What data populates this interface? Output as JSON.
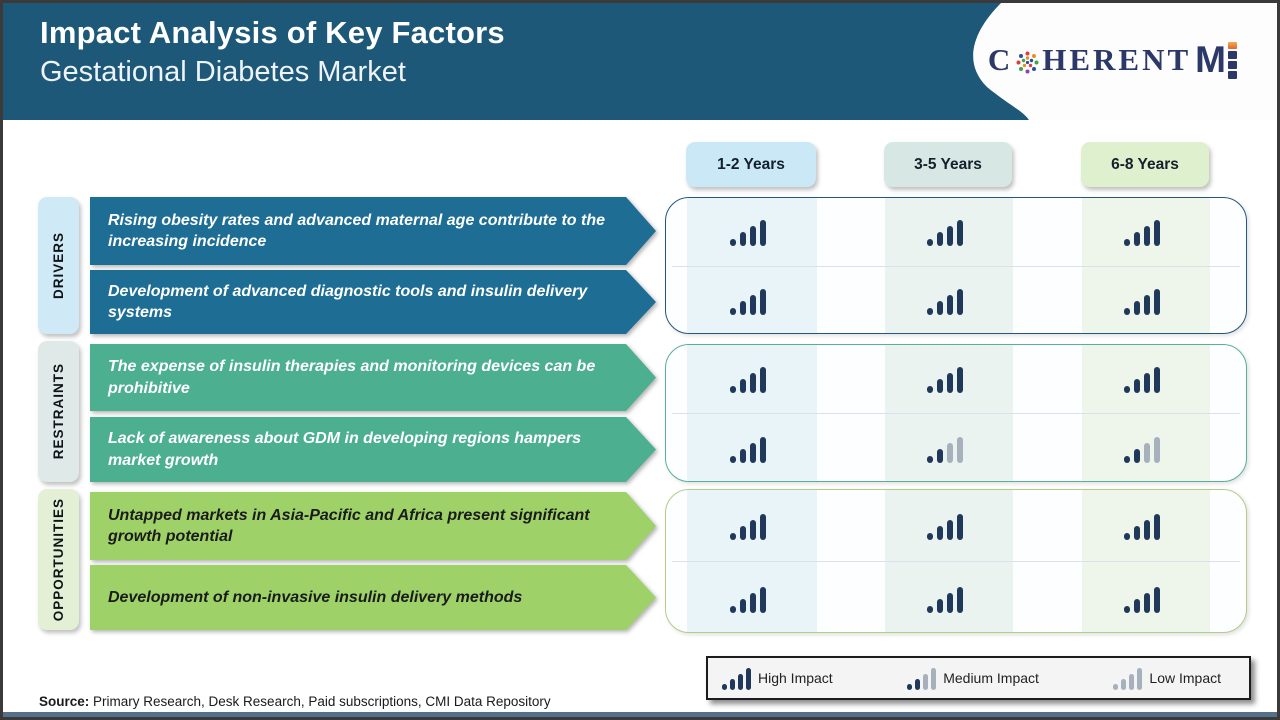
{
  "header": {
    "title": "Impact Analysis of Key Factors",
    "subtitle": "Gestational Diabetes Market",
    "brand": {
      "part1": "C",
      "part2": "HERENT",
      "part3": "M"
    }
  },
  "columns": [
    {
      "label": "1-2 Years"
    },
    {
      "label": "3-5 Years"
    },
    {
      "label": "6-8 Years"
    }
  ],
  "groups": [
    {
      "label": "DRIVERS",
      "rows": [
        {
          "text": "Rising obesity rates and advanced maternal age contribute to the increasing incidence",
          "impact": [
            "high",
            "high",
            "high"
          ]
        },
        {
          "text": "Development of advanced diagnostic tools and insulin delivery systems",
          "impact": [
            "high",
            "high",
            "high"
          ]
        }
      ]
    },
    {
      "label": "RESTRAINTS",
      "rows": [
        {
          "text": "The expense of insulin therapies and monitoring devices can be prohibitive",
          "impact": [
            "high",
            "high",
            "high"
          ]
        },
        {
          "text": "Lack of awareness about GDM in developing regions hampers market growth",
          "impact": [
            "high",
            "medium",
            "medium"
          ]
        }
      ]
    },
    {
      "label": "OPPORTUNITIES",
      "rows": [
        {
          "text": "Untapped markets in Asia-Pacific and Africa present significant growth potential",
          "impact": [
            "high",
            "high",
            "high"
          ]
        },
        {
          "text": "Development of non-invasive insulin delivery methods",
          "impact": [
            "high",
            "high",
            "high"
          ]
        }
      ]
    }
  ],
  "legend": [
    {
      "label": "High Impact",
      "level": "high"
    },
    {
      "label": "Medium Impact",
      "level": "medium"
    },
    {
      "label": "Low Impact",
      "level": "low"
    }
  ],
  "impact_styles": {
    "high": [
      1,
      1,
      1,
      1
    ],
    "medium": [
      1,
      1,
      0,
      0
    ],
    "low": [
      0,
      0,
      0,
      0
    ]
  },
  "colors": {
    "header_bg": "#1d5878",
    "driver_arrow": "#1e6d94",
    "restraint_arrow": "#4caf8f",
    "opportunity_arrow": "#9ed269",
    "bar_dark": "#20395a",
    "bar_gray": "#a7b0bd",
    "chip_1_2": "#cbe8f6",
    "chip_3_5": "#d7e7e3",
    "chip_6_8": "#def0cd"
  },
  "source": {
    "label": "Source:",
    "text": " Primary Research, Desk Research, Paid subscriptions, CMI Data Repository"
  }
}
